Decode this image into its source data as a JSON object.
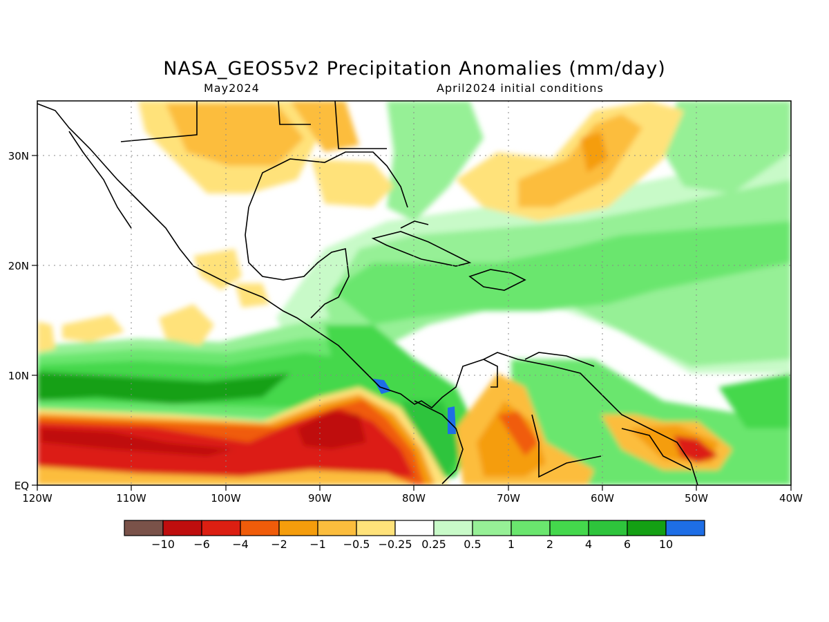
{
  "title": "NASA_GEOS5v2 Precipitation Anomalies (mm/day)",
  "subtitle_left": "May2024",
  "subtitle_right": "April2024 initial conditions",
  "map": {
    "lon_range": [
      -120,
      -40
    ],
    "lat_range": [
      0,
      35
    ],
    "x_ticks": [
      "120W",
      "110W",
      "100W",
      "90W",
      "80W",
      "70W",
      "60W",
      "50W",
      "40W"
    ],
    "y_ticks": [
      "EQ",
      "10N",
      "20N",
      "30N"
    ],
    "gridlines": "dotted"
  },
  "colorbar": {
    "labels": [
      "−10",
      "−6",
      "−4",
      "−2",
      "−1",
      "−0.5",
      "−0.25",
      "0.25",
      "0.5",
      "1",
      "2",
      "4",
      "6",
      "10"
    ],
    "colors": [
      "#7a5249",
      "#bf0e0e",
      "#dc1f12",
      "#f05c0a",
      "#f59d0c",
      "#fcbd3d",
      "#ffe27a",
      "#ffffff",
      "#c8fac8",
      "#96f096",
      "#6ae66e",
      "#44d84c",
      "#2ec43c",
      "#14a014",
      "#1e6ee6"
    ]
  }
}
